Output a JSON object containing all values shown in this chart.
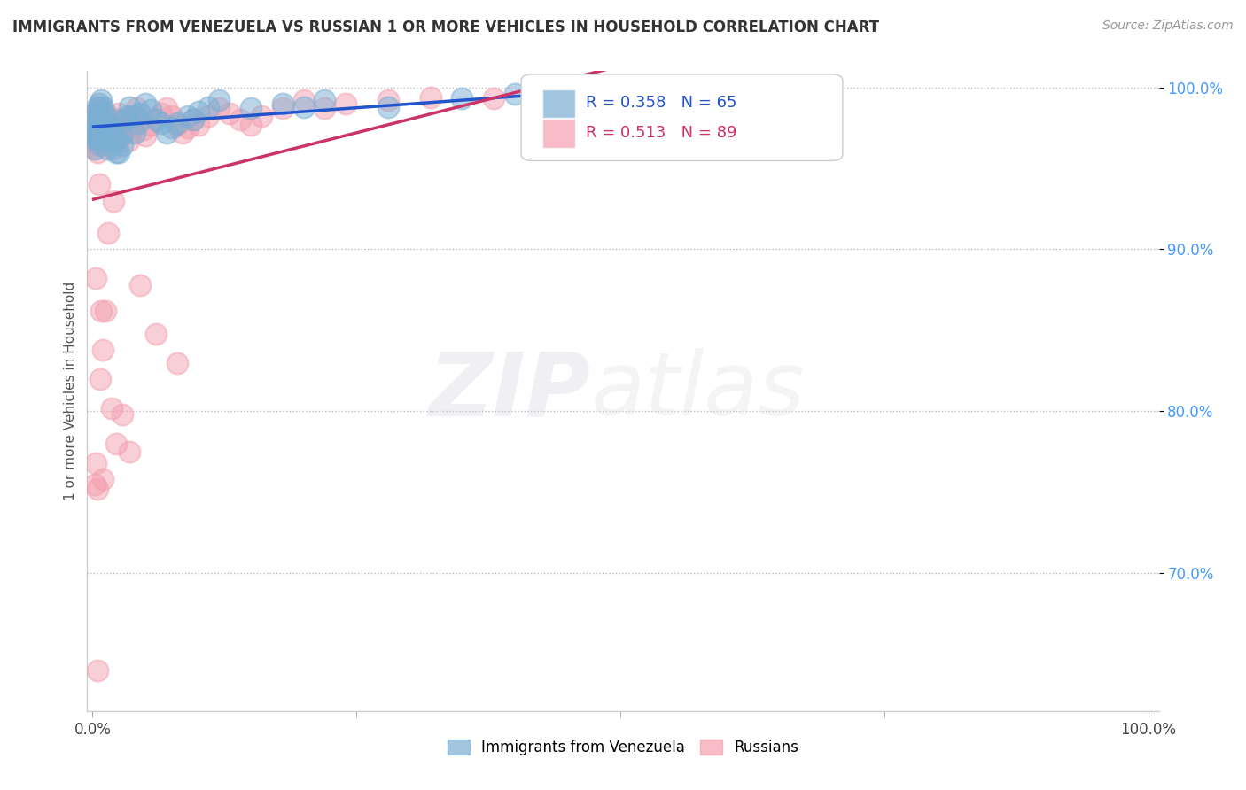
{
  "title": "IMMIGRANTS FROM VENEZUELA VS RUSSIAN 1 OR MORE VEHICLES IN HOUSEHOLD CORRELATION CHART",
  "source": "Source: ZipAtlas.com",
  "ylabel": "1 or more Vehicles in Household",
  "xlim": [
    -0.005,
    1.01
  ],
  "ylim": [
    0.615,
    1.01
  ],
  "yticks": [
    0.7,
    0.8,
    0.9,
    1.0
  ],
  "ytick_labels": [
    "70.0%",
    "80.0%",
    "90.0%",
    "100.0%"
  ],
  "xticks": [
    0.0,
    1.0
  ],
  "xtick_labels": [
    "0.0%",
    "100.0%"
  ],
  "legend_blue_label": "Immigrants from Venezuela",
  "legend_pink_label": "Russians",
  "R_blue": "0.358",
  "N_blue": "65",
  "R_pink": "0.513",
  "N_pink": "89",
  "blue_color": "#7BAFD4",
  "pink_color": "#F4A0B0",
  "blue_line_color": "#2255CC",
  "pink_line_color": "#CC3366",
  "background_color": "#FFFFFF",
  "venezuela_x": [
    0.001,
    0.002,
    0.002,
    0.003,
    0.003,
    0.004,
    0.004,
    0.005,
    0.005,
    0.005,
    0.006,
    0.006,
    0.007,
    0.007,
    0.008,
    0.008,
    0.009,
    0.009,
    0.01,
    0.01,
    0.011,
    0.012,
    0.013,
    0.014,
    0.015,
    0.016,
    0.017,
    0.018,
    0.019,
    0.02,
    0.021,
    0.022,
    0.023,
    0.025,
    0.027,
    0.028,
    0.03,
    0.033,
    0.035,
    0.038,
    0.04,
    0.043,
    0.045,
    0.05,
    0.055,
    0.06,
    0.065,
    0.07,
    0.075,
    0.08,
    0.09,
    0.095,
    0.1,
    0.11,
    0.12,
    0.15,
    0.18,
    0.2,
    0.22,
    0.28,
    0.35,
    0.4,
    0.45,
    0.52,
    0.6
  ],
  "venezuela_y": [
    0.97,
    0.962,
    0.975,
    0.968,
    0.98,
    0.972,
    0.985,
    0.988,
    0.978,
    0.968,
    0.99,
    0.982,
    0.978,
    0.965,
    0.992,
    0.984,
    0.978,
    0.97,
    0.988,
    0.978,
    0.984,
    0.975,
    0.968,
    0.962,
    0.978,
    0.975,
    0.97,
    0.98,
    0.975,
    0.97,
    0.966,
    0.96,
    0.968,
    0.96,
    0.97,
    0.964,
    0.98,
    0.982,
    0.988,
    0.982,
    0.972,
    0.978,
    0.984,
    0.99,
    0.986,
    0.98,
    0.978,
    0.972,
    0.975,
    0.978,
    0.982,
    0.98,
    0.985,
    0.988,
    0.992,
    0.987,
    0.99,
    0.988,
    0.992,
    0.988,
    0.993,
    0.996,
    0.994,
    0.998,
    0.997
  ],
  "russian_x": [
    0.001,
    0.001,
    0.002,
    0.002,
    0.003,
    0.003,
    0.004,
    0.004,
    0.005,
    0.005,
    0.005,
    0.006,
    0.006,
    0.007,
    0.008,
    0.009,
    0.01,
    0.011,
    0.012,
    0.013,
    0.014,
    0.015,
    0.016,
    0.017,
    0.018,
    0.019,
    0.02,
    0.021,
    0.022,
    0.024,
    0.025,
    0.026,
    0.028,
    0.03,
    0.032,
    0.034,
    0.036,
    0.038,
    0.04,
    0.042,
    0.045,
    0.048,
    0.05,
    0.055,
    0.06,
    0.065,
    0.07,
    0.075,
    0.08,
    0.085,
    0.09,
    0.095,
    0.1,
    0.11,
    0.12,
    0.13,
    0.14,
    0.15,
    0.16,
    0.18,
    0.2,
    0.22,
    0.24,
    0.28,
    0.32,
    0.38,
    0.45,
    0.52,
    0.58,
    0.65,
    0.002,
    0.003,
    0.005,
    0.006,
    0.007,
    0.008,
    0.01,
    0.012,
    0.015,
    0.018,
    0.022,
    0.028,
    0.035,
    0.045,
    0.06,
    0.08,
    0.005,
    0.01,
    0.02
  ],
  "russian_y": [
    0.968,
    0.98,
    0.962,
    0.975,
    0.882,
    0.972,
    0.965,
    0.978,
    0.982,
    0.968,
    0.96,
    0.988,
    0.98,
    0.972,
    0.978,
    0.985,
    0.968,
    0.975,
    0.98,
    0.972,
    0.965,
    0.978,
    0.982,
    0.975,
    0.968,
    0.962,
    0.97,
    0.978,
    0.972,
    0.98,
    0.984,
    0.977,
    0.97,
    0.974,
    0.98,
    0.967,
    0.972,
    0.977,
    0.982,
    0.987,
    0.98,
    0.974,
    0.97,
    0.977,
    0.98,
    0.984,
    0.987,
    0.982,
    0.977,
    0.972,
    0.975,
    0.98,
    0.977,
    0.982,
    0.987,
    0.984,
    0.98,
    0.977,
    0.982,
    0.987,
    0.992,
    0.987,
    0.99,
    0.992,
    0.994,
    0.993,
    0.992,
    0.995,
    0.99,
    0.994,
    0.755,
    0.768,
    0.752,
    0.94,
    0.82,
    0.862,
    0.838,
    0.862,
    0.91,
    0.802,
    0.78,
    0.798,
    0.775,
    0.878,
    0.848,
    0.83,
    0.64,
    0.758,
    0.93
  ]
}
